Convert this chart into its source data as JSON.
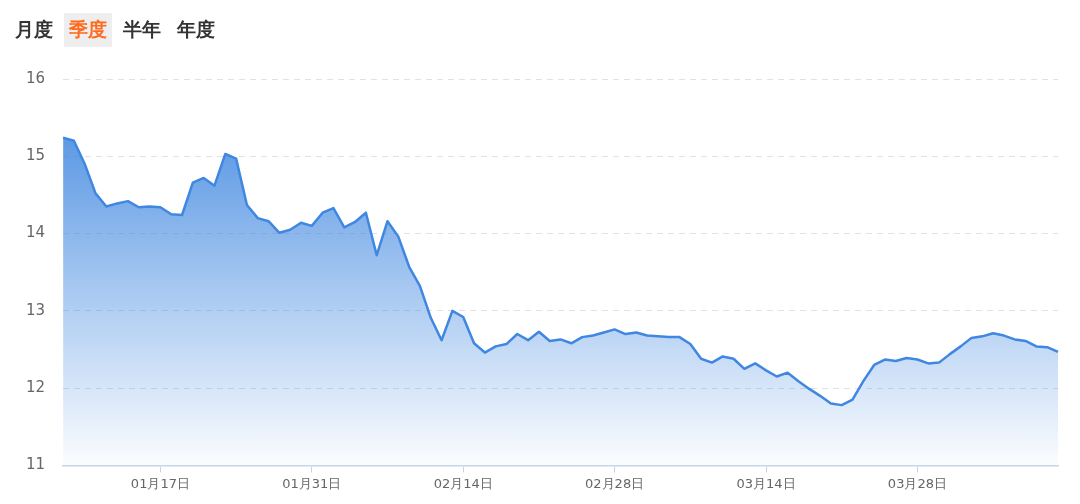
{
  "chart_data": {
    "type": "area",
    "annotations": [
      "月度",
      "季度",
      "半年",
      "年度"
    ],
    "categories": [
      null,
      null,
      null,
      null,
      null,
      null,
      null,
      null,
      null,
      "01月17日",
      null,
      null,
      null,
      null,
      null,
      null,
      null,
      null,
      null,
      null,
      null,
      null,
      null,
      "01月31日",
      null,
      null,
      null,
      null,
      null,
      null,
      null,
      null,
      null,
      null,
      null,
      null,
      null,
      "02月14日",
      null,
      null,
      null,
      null,
      null,
      null,
      null,
      null,
      null,
      null,
      null,
      null,
      null,
      "02月28日",
      null,
      null,
      null,
      null,
      null,
      null,
      null,
      null,
      null,
      null,
      null,
      null,
      null,
      "03月14日",
      null,
      null,
      null,
      null,
      null,
      null,
      null,
      null,
      null,
      null,
      null,
      null,
      null,
      "03月28日",
      null,
      null,
      null,
      null,
      null,
      null,
      null,
      null,
      null,
      null,
      null,
      null,
      null
    ],
    "series": [
      {
        "color": "#3f87e0",
        "values": [
          15.24,
          15.2,
          14.9,
          14.52,
          14.35,
          14.39,
          14.42,
          14.34,
          14.35,
          14.34,
          14.25,
          14.24,
          14.66,
          14.72,
          14.62,
          15.03,
          14.97,
          14.37,
          14.2,
          14.16,
          14.01,
          14.05,
          14.14,
          14.1,
          14.27,
          14.33,
          14.08,
          14.15,
          14.27,
          13.72,
          14.16,
          13.96,
          13.57,
          13.32,
          12.91,
          12.62,
          13.0,
          12.92,
          12.58,
          12.46,
          12.54,
          12.57,
          12.7,
          12.62,
          12.73,
          12.61,
          12.63,
          12.58,
          12.66,
          12.68,
          12.72,
          12.76,
          12.7,
          12.72,
          12.68,
          12.67,
          12.66,
          12.66,
          12.57,
          12.38,
          12.33,
          12.41,
          12.38,
          12.25,
          12.32,
          12.23,
          12.15,
          12.2,
          12.09,
          11.99,
          11.9,
          11.8,
          11.78,
          11.85,
          12.09,
          12.3,
          12.37,
          12.35,
          12.39,
          12.37,
          12.32,
          12.33,
          12.44,
          12.54,
          12.65,
          12.67,
          12.71,
          12.68,
          12.63,
          12.61,
          12.54,
          12.53,
          12.47
        ]
      }
    ],
    "ylim": [
      11,
      16
    ],
    "yticks": [
      11,
      12,
      13,
      14,
      15,
      16
    ],
    "grid": "y",
    "legend": false,
    "marker": "none",
    "line_style": "solid"
  }
}
